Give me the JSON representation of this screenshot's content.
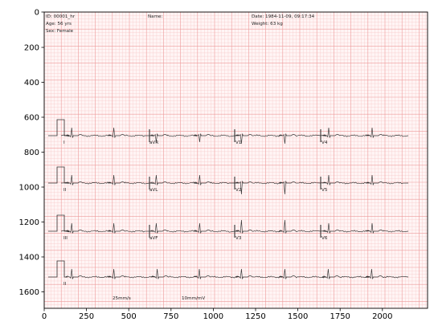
{
  "header": {
    "id_line": "ID: 00001_hr",
    "age_line": "Age: 56 yrs",
    "sex_line": "Sex: Female",
    "name_line": "Name:",
    "date_line": "Date: 1984-11-09, 09:17:34",
    "weight_line": "Weight: 63 kg"
  },
  "footer": {
    "speed": "25mm/s",
    "gain": "10mm/mV"
  },
  "axes": {
    "x_ticks": [
      "0",
      "250",
      "500",
      "750",
      "1000",
      "1250",
      "1500",
      "1750",
      "2000"
    ],
    "y_ticks": [
      "0",
      "200",
      "400",
      "600",
      "800",
      "1000",
      "1200",
      "1400",
      "1600"
    ]
  },
  "ecg": {
    "leads": [
      [
        "I",
        "aVR",
        "V1",
        "V4"
      ],
      [
        "II",
        "aVL",
        "V2",
        "V5"
      ],
      [
        "III",
        "aVF",
        "V3",
        "V6"
      ],
      [
        "II"
      ]
    ]
  },
  "colors": {
    "grid_minor": "#f6c6c6",
    "grid_major": "#ee9a9a",
    "trace": "#333333",
    "paper": "#fff5f5"
  }
}
